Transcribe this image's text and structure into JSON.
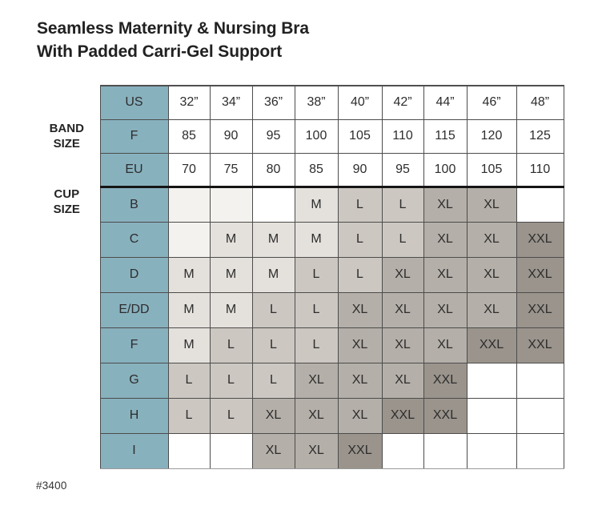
{
  "title": {
    "line1": "Seamless Maternity & Nursing Bra",
    "line2": "With Padded Carri-Gel Support"
  },
  "footer": {
    "style_number": "#3400"
  },
  "colors": {
    "header_teal": "#88b1be",
    "m": "#e4e1dc",
    "l": "#ccc7c1",
    "xl": "#b4afa8",
    "xxl": "#9a948c",
    "tint": "#f4f2ee",
    "white": "#ffffff"
  },
  "chart_data": {
    "type": "table",
    "title": "Seamless Maternity & Nursing Bra With Padded Carri-Gel Support",
    "band_section": {
      "label_lines": [
        "BAND",
        "SIZE"
      ],
      "rows": [
        {
          "label": "US",
          "values": [
            "32”",
            "34”",
            "36”",
            "38”",
            "40”",
            "42”",
            "44”",
            "46”",
            "48”"
          ]
        },
        {
          "label": "F",
          "values": [
            "85",
            "90",
            "95",
            "100",
            "105",
            "110",
            "115",
            "120",
            "125"
          ]
        },
        {
          "label": "EU",
          "values": [
            "70",
            "75",
            "80",
            "85",
            "90",
            "95",
            "100",
            "105",
            "110"
          ]
        }
      ]
    },
    "cup_section": {
      "label_lines": [
        "CUP",
        "SIZE"
      ],
      "size_values_used": [
        "M",
        "L",
        "XL",
        "XXL"
      ],
      "rows": [
        {
          "label": "B",
          "cells": [
            {
              "size": "",
              "shade": "tint"
            },
            {
              "size": "",
              "shade": "tint"
            },
            {
              "size": "",
              "shade": "white"
            },
            {
              "size": "M",
              "shade": "m"
            },
            {
              "size": "L",
              "shade": "l"
            },
            {
              "size": "L",
              "shade": "l"
            },
            {
              "size": "XL",
              "shade": "xl"
            },
            {
              "size": "XL",
              "shade": "xl"
            },
            {
              "size": "",
              "shade": "white"
            }
          ]
        },
        {
          "label": "C",
          "cells": [
            {
              "size": "",
              "shade": "tint"
            },
            {
              "size": "M",
              "shade": "m"
            },
            {
              "size": "M",
              "shade": "m"
            },
            {
              "size": "M",
              "shade": "m"
            },
            {
              "size": "L",
              "shade": "l"
            },
            {
              "size": "L",
              "shade": "l"
            },
            {
              "size": "XL",
              "shade": "xl"
            },
            {
              "size": "XL",
              "shade": "xl"
            },
            {
              "size": "XXL",
              "shade": "xxl"
            }
          ]
        },
        {
          "label": "D",
          "cells": [
            {
              "size": "M",
              "shade": "m"
            },
            {
              "size": "M",
              "shade": "m"
            },
            {
              "size": "M",
              "shade": "m"
            },
            {
              "size": "L",
              "shade": "l"
            },
            {
              "size": "L",
              "shade": "l"
            },
            {
              "size": "XL",
              "shade": "xl"
            },
            {
              "size": "XL",
              "shade": "xl"
            },
            {
              "size": "XL",
              "shade": "xl"
            },
            {
              "size": "XXL",
              "shade": "xxl"
            }
          ]
        },
        {
          "label": "E/DD",
          "cells": [
            {
              "size": "M",
              "shade": "m"
            },
            {
              "size": "M",
              "shade": "m"
            },
            {
              "size": "L",
              "shade": "l"
            },
            {
              "size": "L",
              "shade": "l"
            },
            {
              "size": "XL",
              "shade": "xl"
            },
            {
              "size": "XL",
              "shade": "xl"
            },
            {
              "size": "XL",
              "shade": "xl"
            },
            {
              "size": "XL",
              "shade": "xl"
            },
            {
              "size": "XXL",
              "shade": "xxl"
            }
          ]
        },
        {
          "label": "F",
          "cells": [
            {
              "size": "M",
              "shade": "m"
            },
            {
              "size": "L",
              "shade": "l"
            },
            {
              "size": "L",
              "shade": "l"
            },
            {
              "size": "L",
              "shade": "l"
            },
            {
              "size": "XL",
              "shade": "xl"
            },
            {
              "size": "XL",
              "shade": "xl"
            },
            {
              "size": "XL",
              "shade": "xl"
            },
            {
              "size": "XXL",
              "shade": "xxl"
            },
            {
              "size": "XXL",
              "shade": "xxl"
            }
          ]
        },
        {
          "label": "G",
          "cells": [
            {
              "size": "L",
              "shade": "l"
            },
            {
              "size": "L",
              "shade": "l"
            },
            {
              "size": "L",
              "shade": "l"
            },
            {
              "size": "XL",
              "shade": "xl"
            },
            {
              "size": "XL",
              "shade": "xl"
            },
            {
              "size": "XL",
              "shade": "xl"
            },
            {
              "size": "XXL",
              "shade": "xxl"
            },
            {
              "size": "",
              "shade": "white"
            },
            {
              "size": "",
              "shade": "white"
            }
          ]
        },
        {
          "label": "H",
          "cells": [
            {
              "size": "L",
              "shade": "l"
            },
            {
              "size": "L",
              "shade": "l"
            },
            {
              "size": "XL",
              "shade": "xl"
            },
            {
              "size": "XL",
              "shade": "xl"
            },
            {
              "size": "XL",
              "shade": "xl"
            },
            {
              "size": "XXL",
              "shade": "xxl"
            },
            {
              "size": "XXL",
              "shade": "xxl"
            },
            {
              "size": "",
              "shade": "white"
            },
            {
              "size": "",
              "shade": "white"
            }
          ]
        },
        {
          "label": "I",
          "cells": [
            {
              "size": "",
              "shade": "white"
            },
            {
              "size": "",
              "shade": "white"
            },
            {
              "size": "XL",
              "shade": "xl"
            },
            {
              "size": "XL",
              "shade": "xl"
            },
            {
              "size": "XXL",
              "shade": "xxl"
            },
            {
              "size": "",
              "shade": "white"
            },
            {
              "size": "",
              "shade": "white"
            },
            {
              "size": "",
              "shade": "white"
            },
            {
              "size": "",
              "shade": "white"
            }
          ]
        }
      ]
    }
  }
}
